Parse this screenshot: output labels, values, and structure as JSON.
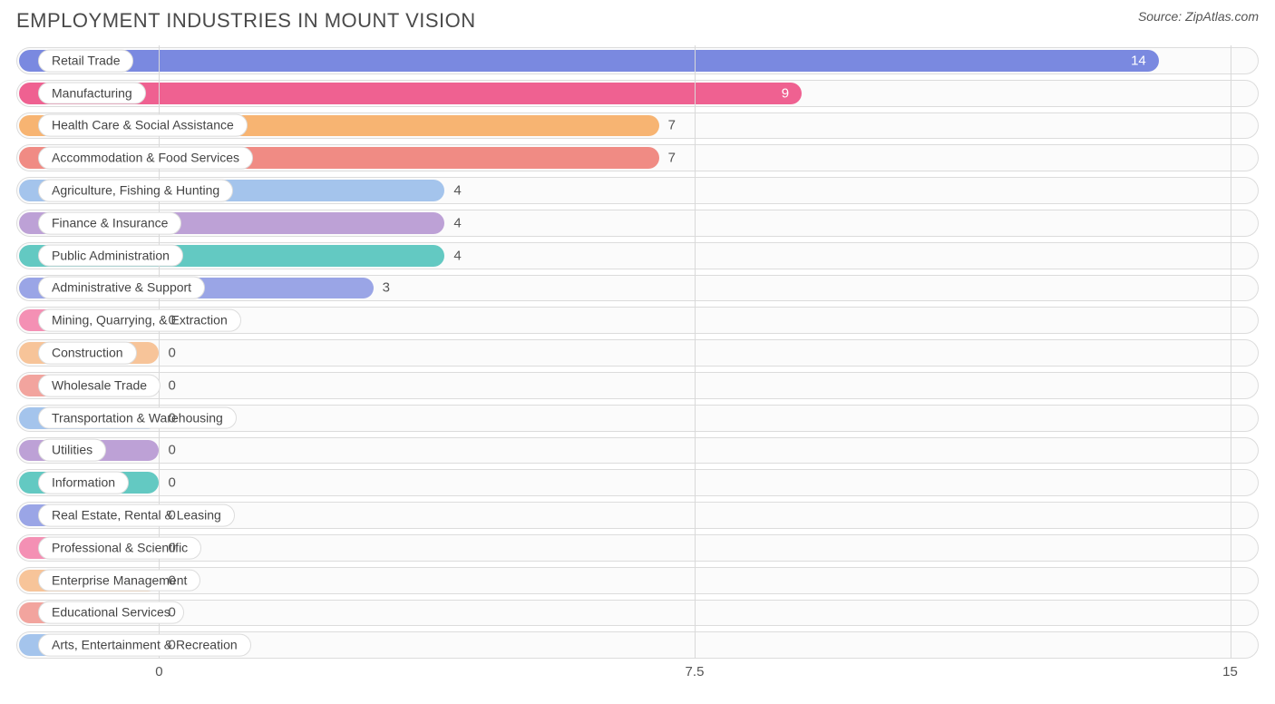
{
  "header": {
    "title": "EMPLOYMENT INDUSTRIES IN MOUNT VISION",
    "source_prefix": "Source: ",
    "source_name": "ZipAtlas.com"
  },
  "chart": {
    "type": "bar-horizontal",
    "x_min": -2,
    "x_max": 15.4,
    "x_ticks": [
      0,
      7.5,
      15
    ],
    "background_color": "#ffffff",
    "track_border_color": "#dcdcdc",
    "track_fill_color": "#fbfbfb",
    "gridline_color": "#d9d9d9",
    "label_pill_bg": "#ffffff",
    "label_pill_border": "#dcdcdc",
    "label_fontsize": 14,
    "value_fontsize": 15,
    "title_fontsize": 22,
    "title_color": "#4a4a4a",
    "source_fontsize": 14,
    "value_color_inside": "#ffffff",
    "value_color_outside": "#555555",
    "inside_threshold": 8,
    "rows": [
      {
        "label": "Retail Trade",
        "value": 14,
        "color": "#7a89e0"
      },
      {
        "label": "Manufacturing",
        "value": 9,
        "color": "#ef6191"
      },
      {
        "label": "Health Care & Social Assistance",
        "value": 7,
        "color": "#f7b472"
      },
      {
        "label": "Accommodation & Food Services",
        "value": 7,
        "color": "#f08b84"
      },
      {
        "label": "Agriculture, Fishing & Hunting",
        "value": 4,
        "color": "#a4c4ec"
      },
      {
        "label": "Finance & Insurance",
        "value": 4,
        "color": "#bda1d6"
      },
      {
        "label": "Public Administration",
        "value": 4,
        "color": "#63c9c2"
      },
      {
        "label": "Administrative & Support",
        "value": 3,
        "color": "#9aa5e6"
      },
      {
        "label": "Mining, Quarrying, & Extraction",
        "value": 0,
        "color": "#f490b4"
      },
      {
        "label": "Construction",
        "value": 0,
        "color": "#f7c499"
      },
      {
        "label": "Wholesale Trade",
        "value": 0,
        "color": "#f2a49e"
      },
      {
        "label": "Transportation & Warehousing",
        "value": 0,
        "color": "#a4c4ec"
      },
      {
        "label": "Utilities",
        "value": 0,
        "color": "#bda1d6"
      },
      {
        "label": "Information",
        "value": 0,
        "color": "#63c9c2"
      },
      {
        "label": "Real Estate, Rental & Leasing",
        "value": 0,
        "color": "#9aa5e6"
      },
      {
        "label": "Professional & Scientific",
        "value": 0,
        "color": "#f490b4"
      },
      {
        "label": "Enterprise Management",
        "value": 0,
        "color": "#f7c499"
      },
      {
        "label": "Educational Services",
        "value": 0,
        "color": "#f2a49e"
      },
      {
        "label": "Arts, Entertainment & Recreation",
        "value": 0,
        "color": "#a4c4ec"
      }
    ]
  }
}
